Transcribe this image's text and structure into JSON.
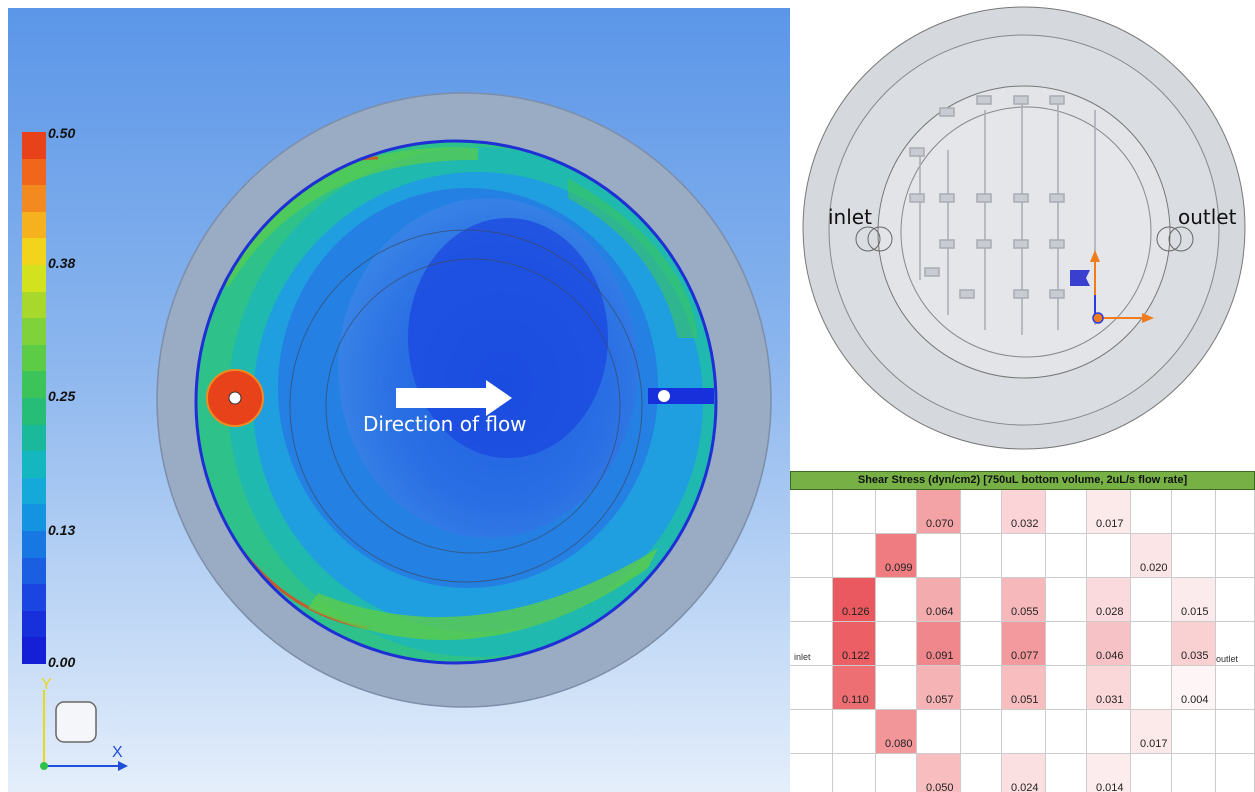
{
  "colorbar": {
    "ticks": [
      "0.50",
      "0.38",
      "0.25",
      "0.13",
      "0.00"
    ],
    "colors": [
      "#e8421a",
      "#f0661b",
      "#f38a20",
      "#f6b11f",
      "#f3d41c",
      "#d3e21e",
      "#a9d82c",
      "#80d23a",
      "#5ccc47",
      "#3cc45b",
      "#26be77",
      "#1ab99b",
      "#14b7c0",
      "#14a9d8",
      "#1493e1",
      "#1778e3",
      "#1a5fe2",
      "#1a45e0",
      "#1830dc",
      "#141fd6"
    ]
  },
  "cfd": {
    "flow_label": "Direction of flow"
  },
  "axes": {
    "y": "Y",
    "x": "X"
  },
  "model": {
    "inlet": "inlet",
    "outlet": "outlet"
  },
  "table": {
    "title": "Shear Stress (dyn/cm2) [750uL bottom volume, 2uL/s flow rate]",
    "row_label_left": "inlet",
    "row_label_right": "outlet",
    "rows": [
      [
        null,
        null,
        null,
        "0.070",
        null,
        "0.032",
        null,
        "0.017",
        null,
        null,
        null
      ],
      [
        null,
        null,
        "0.099",
        null,
        null,
        null,
        null,
        null,
        "0.020",
        null,
        null
      ],
      [
        null,
        "0.126",
        null,
        "0.064",
        null,
        "0.055",
        null,
        "0.028",
        null,
        "0.015",
        null
      ],
      [
        null,
        "0.122",
        null,
        "0.091",
        null,
        "0.077",
        null,
        "0.046",
        null,
        "0.035",
        null
      ],
      [
        null,
        "0.110",
        null,
        "0.057",
        null,
        "0.051",
        null,
        "0.031",
        null,
        "0.004",
        null
      ],
      [
        null,
        null,
        "0.080",
        null,
        null,
        null,
        null,
        null,
        "0.017",
        null,
        null
      ],
      [
        null,
        null,
        null,
        "0.050",
        null,
        "0.024",
        null,
        "0.014",
        null,
        null,
        null
      ]
    ],
    "max_value": 0.126,
    "heat_color": "#e8474e"
  }
}
